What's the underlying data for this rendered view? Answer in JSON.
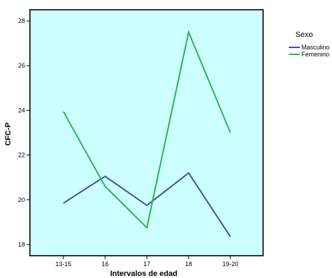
{
  "chart_data": {
    "type": "line",
    "title": "",
    "xlabel": "Intervalos de edad",
    "ylabel": "CFC-P",
    "categories": [
      "13-15",
      "16",
      "17",
      "18",
      "19-20"
    ],
    "ylim": [
      17.5,
      28.5
    ],
    "yticks": [
      18,
      20,
      22,
      24,
      26,
      28
    ],
    "grid": false,
    "legend_position": "right",
    "legend_title": "Sexo",
    "plot_background": "#ccffff",
    "series": [
      {
        "name": "Masculino",
        "color": "#3e4fa5",
        "values": [
          19.85,
          21.05,
          19.75,
          21.2,
          18.35
        ]
      },
      {
        "name": "Femenino",
        "color": "#2db34a",
        "values": [
          23.95,
          20.6,
          18.75,
          27.5,
          23.0
        ]
      }
    ]
  }
}
